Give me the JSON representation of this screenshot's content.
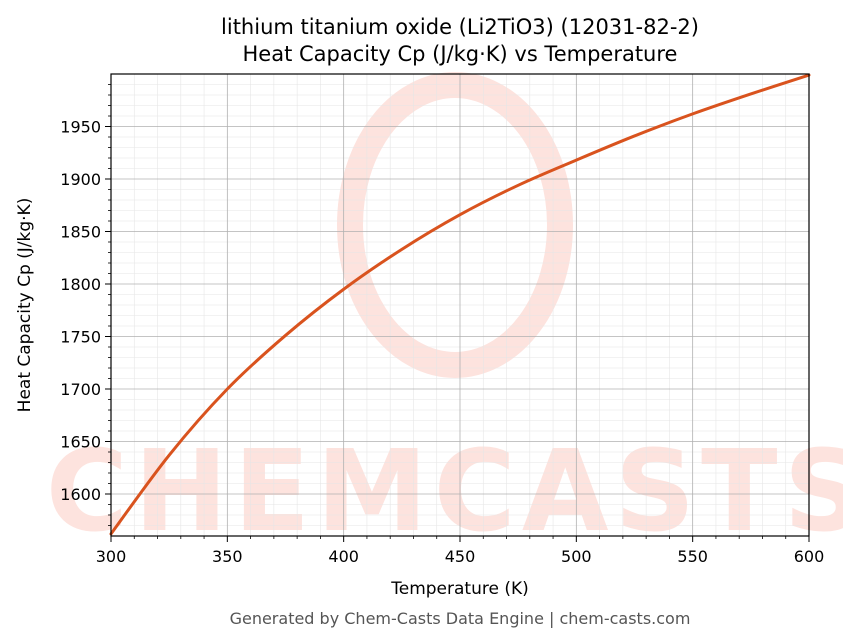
{
  "title_line1": "lithium titanium oxide (Li2TiO3) (12031-82-2)",
  "title_line2": "Heat Capacity Cp (J/kg·K) vs Temperature",
  "footer": "Generated by Chem-Casts Data Engine | chem-casts.com",
  "watermark": "CHEMCASTS",
  "colors": {
    "line": "#d9531e",
    "watermark": "#fde3de",
    "grid_major": "#b0b0b0",
    "grid_minor": "#e6e6e6"
  },
  "chart_data": {
    "type": "line",
    "xlabel": "Temperature (K)",
    "ylabel": "Heat Capacity Cp (J/kg·K)",
    "xlim": [
      300,
      600
    ],
    "ylim": [
      1560,
      2000
    ],
    "xticks": [
      300,
      350,
      400,
      450,
      500,
      550,
      600
    ],
    "yticks": [
      1600,
      1650,
      1700,
      1750,
      1800,
      1850,
      1900,
      1950
    ],
    "grid": true,
    "series": [
      {
        "x": [
          300,
          325,
          350,
          375,
          400,
          425,
          450,
          475,
          500,
          525,
          550,
          575,
          600
        ],
        "values": [
          1562,
          1637,
          1700,
          1751,
          1795,
          1833,
          1866,
          1894,
          1918,
          1941,
          1962,
          1981,
          1999
        ]
      }
    ]
  }
}
